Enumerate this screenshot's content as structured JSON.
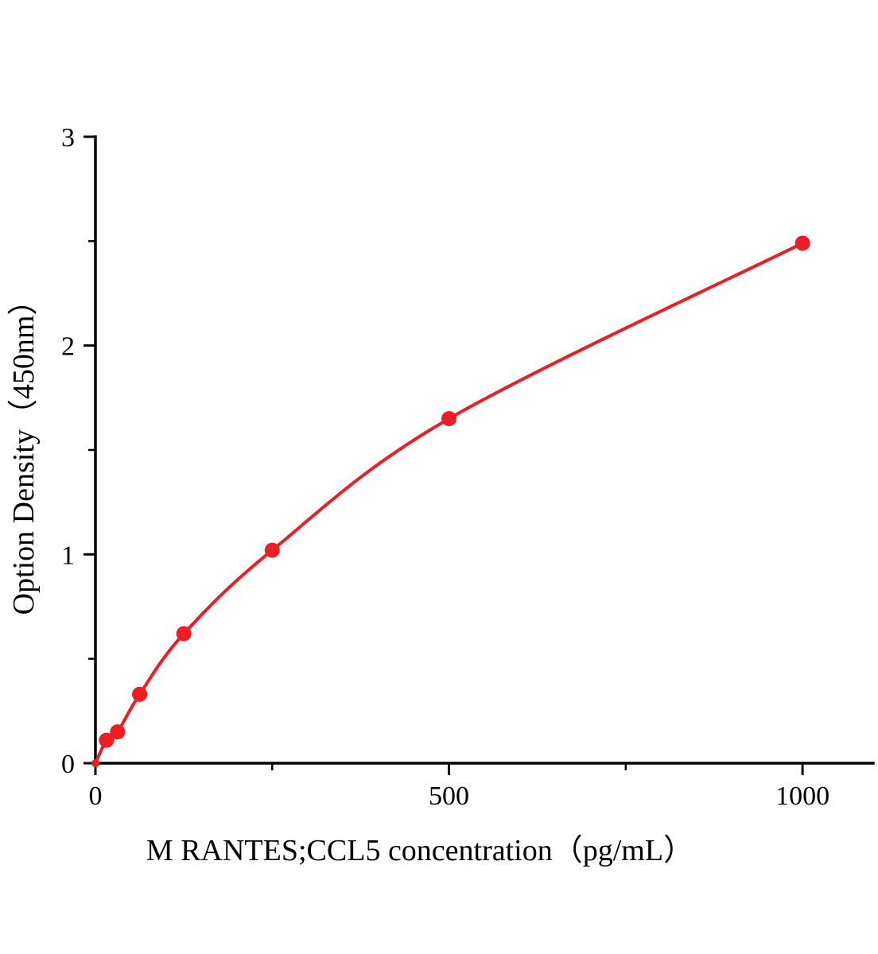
{
  "chart_data": {
    "type": "line",
    "title": "",
    "xlabel": "M  RANTES;CCL5 concentration（pg/mL）",
    "ylabel": "Option Density（450nm）",
    "x": [
      0,
      15.6,
      31.25,
      62.5,
      125,
      250,
      500,
      1000
    ],
    "y": [
      0,
      0.11,
      0.15,
      0.33,
      0.62,
      1.02,
      1.65,
      2.49
    ],
    "xlim": [
      0,
      1100
    ],
    "ylim": [
      0,
      3
    ],
    "x_major_ticks": [
      0,
      500,
      1000
    ],
    "x_minor_ticks": [
      250,
      750
    ],
    "y_major_ticks": [
      0,
      1,
      2,
      3
    ],
    "y_minor_ticks": [
      0.5,
      1.5,
      2.5
    ],
    "line_color": "#ee1c25",
    "marker_color": "#ee1c25",
    "axis_color": "#000000",
    "grid": false,
    "legend": null
  }
}
